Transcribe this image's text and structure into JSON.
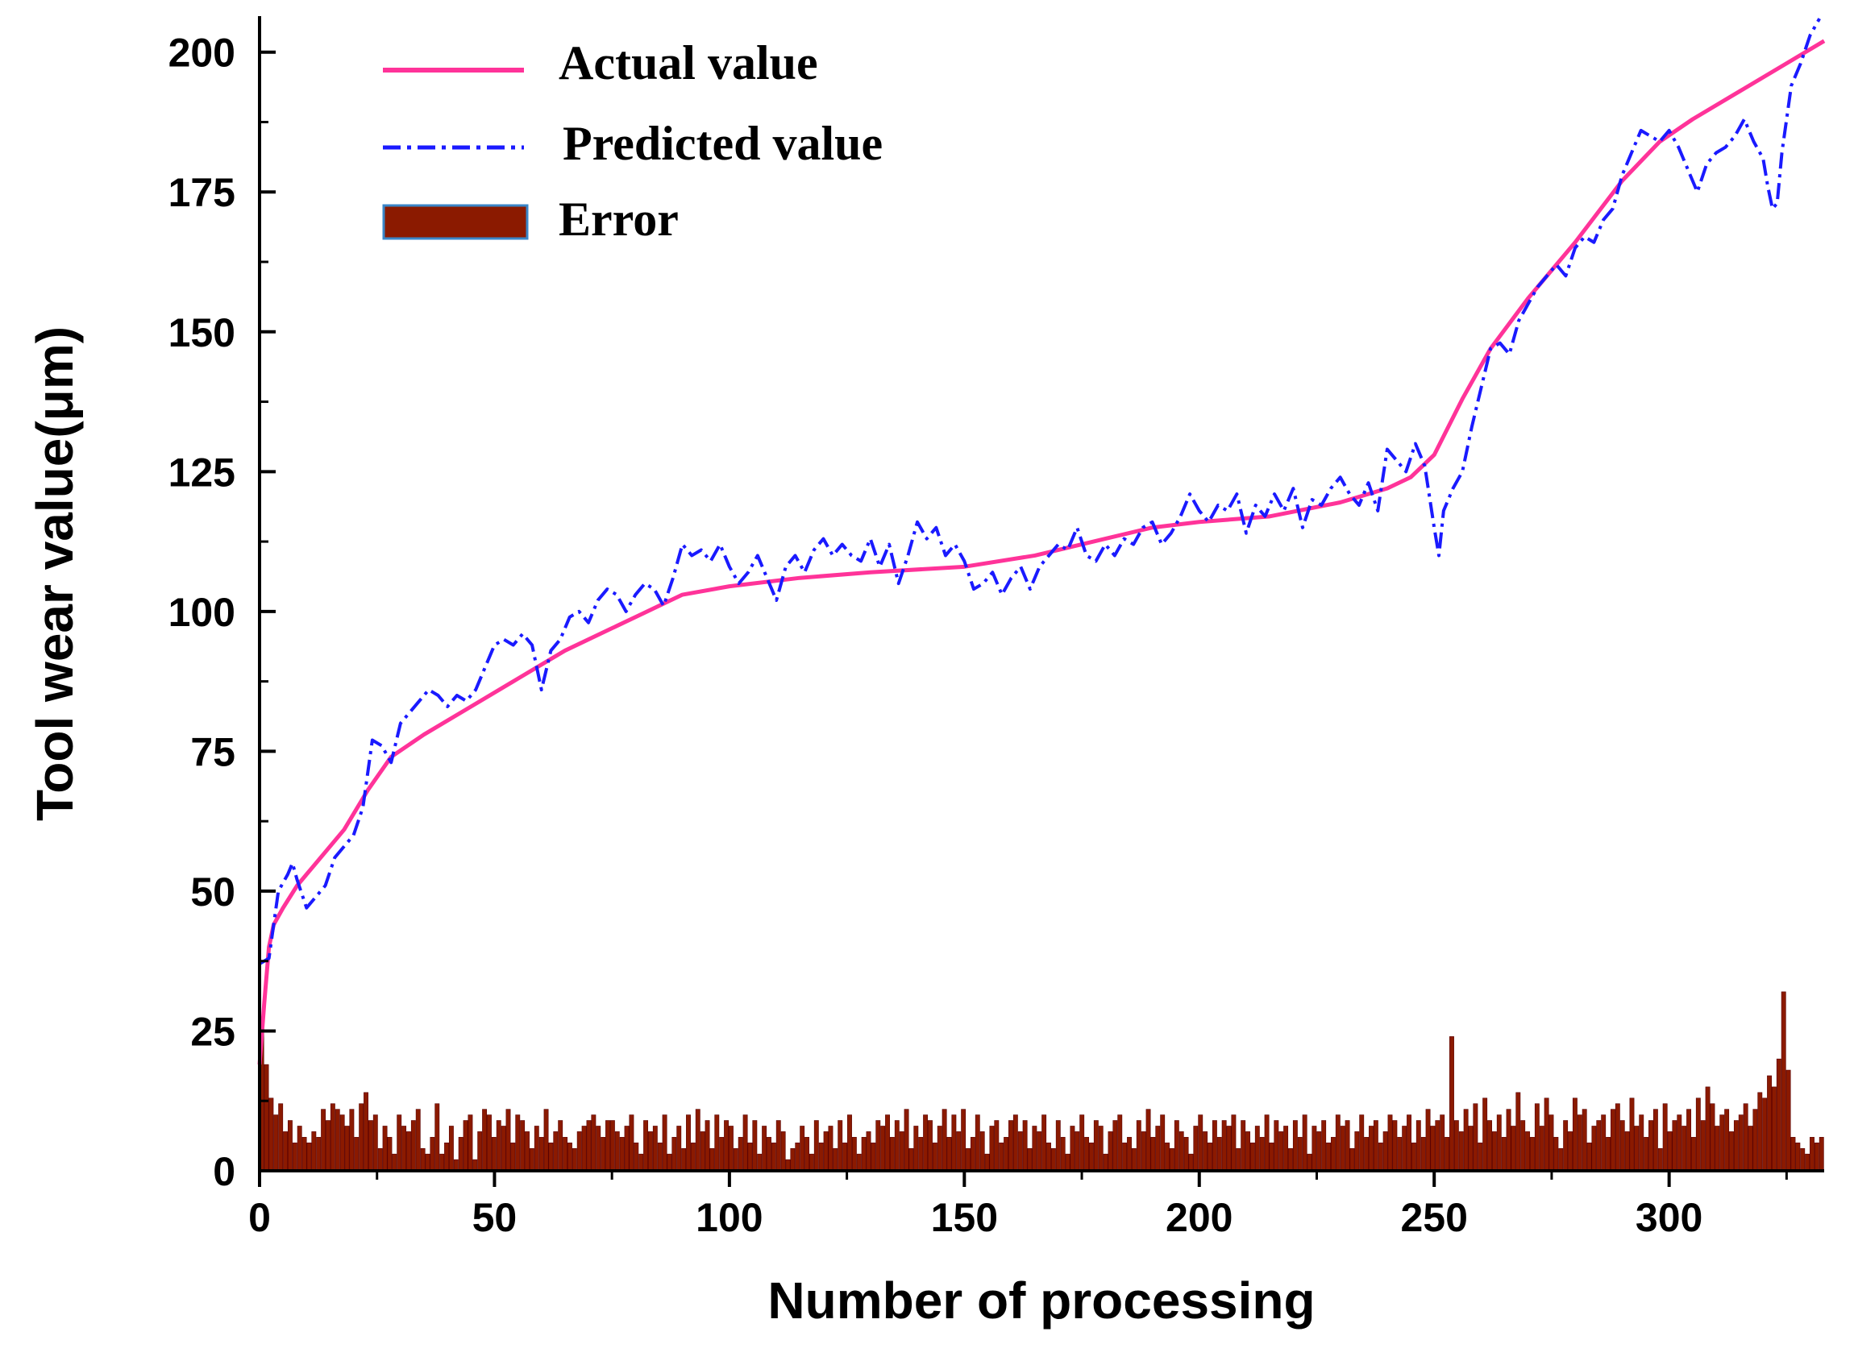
{
  "chart_data": {
    "type": "line",
    "title": "",
    "xlabel": "Number of processing",
    "ylabel": "Tool wear value(μm)",
    "xlim": [
      0,
      333
    ],
    "ylim": [
      0,
      205
    ],
    "xticks": [
      0,
      50,
      100,
      150,
      200,
      250,
      300
    ],
    "yticks": [
      0,
      25,
      50,
      75,
      100,
      125,
      150,
      175,
      200
    ],
    "legend_position": "top-left",
    "colors": {
      "actual": "#ff3399",
      "predicted": "#1a1aff",
      "error": "#8b1a00",
      "error_edge": "#5a0000"
    },
    "legend": [
      {
        "key": "actual",
        "label": "Actual value",
        "style": "solid-line"
      },
      {
        "key": "predicted",
        "label": "Predicted value",
        "style": "dash-dot-line"
      },
      {
        "key": "error",
        "label": "Error",
        "style": "bar"
      }
    ],
    "series": [
      {
        "name": "Actual value",
        "key": "actual",
        "x": [
          0,
          1,
          2,
          3,
          5,
          8,
          12,
          18,
          23,
          28,
          35,
          45,
          55,
          65,
          75,
          85,
          90,
          100,
          115,
          130,
          150,
          165,
          180,
          190,
          200,
          215,
          230,
          240,
          245,
          250,
          256,
          262,
          270,
          280,
          290,
          298,
          305,
          315,
          325,
          333
        ],
        "values": [
          19,
          30,
          40,
          44,
          47,
          51,
          55,
          61,
          68,
          74,
          78,
          83,
          88,
          93,
          97,
          101,
          103,
          104.5,
          106,
          107,
          108,
          110,
          113,
          115,
          116,
          117,
          119.5,
          122,
          124,
          128,
          138,
          147,
          156,
          166,
          177,
          184,
          188,
          193,
          198,
          202
        ]
      },
      {
        "name": "Predicted value",
        "key": "predicted",
        "x": [
          0,
          2,
          4,
          6,
          7,
          8,
          10,
          12,
          14,
          16,
          18,
          20,
          22,
          24,
          26,
          28,
          30,
          32,
          34,
          36,
          38,
          40,
          42,
          44,
          46,
          48,
          50,
          52,
          54,
          56,
          58,
          60,
          62,
          64,
          66,
          68,
          70,
          72,
          74,
          76,
          78,
          80,
          82,
          84,
          86,
          88,
          90,
          92,
          94,
          96,
          98,
          100,
          102,
          104,
          106,
          108,
          110,
          112,
          114,
          116,
          118,
          120,
          122,
          124,
          126,
          128,
          130,
          132,
          134,
          136,
          138,
          140,
          142,
          144,
          146,
          148,
          150,
          152,
          154,
          156,
          158,
          160,
          162,
          164,
          166,
          168,
          170,
          172,
          174,
          176,
          178,
          180,
          182,
          184,
          186,
          188,
          190,
          192,
          194,
          196,
          198,
          200,
          202,
          204,
          206,
          208,
          210,
          212,
          214,
          216,
          218,
          220,
          222,
          224,
          226,
          228,
          230,
          232,
          234,
          236,
          238,
          240,
          242,
          244,
          246,
          248,
          250,
          251,
          252,
          254,
          256,
          258,
          260,
          262,
          264,
          266,
          268,
          270,
          272,
          274,
          276,
          278,
          280,
          282,
          284,
          286,
          288,
          290,
          292,
          294,
          296,
          298,
          300,
          302,
          304,
          306,
          308,
          310,
          312,
          314,
          316,
          318,
          320,
          321,
          322,
          323,
          324,
          326,
          328,
          330,
          332
        ],
        "values": [
          37,
          38,
          50,
          53,
          55,
          52,
          47,
          49,
          51,
          56,
          58,
          60,
          65,
          77,
          76,
          73,
          80,
          82,
          84,
          86,
          85,
          83,
          85,
          84,
          86,
          90,
          94,
          95,
          94,
          96,
          94,
          86,
          93,
          95,
          99,
          100,
          98,
          102,
          104,
          103,
          100,
          103,
          105,
          104,
          101,
          106,
          112,
          110,
          111,
          109,
          112,
          108,
          105,
          107,
          110,
          106,
          102,
          108,
          110,
          107,
          111,
          113,
          110,
          112,
          110,
          109,
          113,
          108,
          112,
          105,
          110,
          116,
          113,
          115,
          110,
          112,
          109,
          104,
          105,
          107,
          103,
          106,
          108,
          104,
          108,
          110,
          112,
          111,
          115,
          110,
          109,
          112,
          110,
          113,
          112,
          115,
          116,
          112,
          114,
          117,
          121,
          118,
          116,
          119,
          118,
          121,
          114,
          119,
          117,
          121,
          118,
          122,
          115,
          120,
          119,
          122,
          124,
          121,
          119,
          123,
          118,
          129,
          127,
          125,
          130,
          126,
          115,
          110,
          118,
          122,
          125,
          133,
          140,
          147,
          148,
          146,
          152,
          155,
          158,
          160,
          162,
          160,
          165,
          167,
          166,
          170,
          172,
          178,
          182,
          186,
          185,
          184,
          186,
          183,
          179,
          175,
          180,
          182,
          183,
          185,
          188,
          184,
          181,
          176,
          172,
          173,
          182,
          194,
          198,
          203,
          206
        ]
      }
    ],
    "error_bars": {
      "name": "Error",
      "values": [
        26,
        19,
        13,
        10,
        12,
        7,
        9,
        5,
        8,
        6,
        5,
        7,
        6,
        11,
        9,
        12,
        11,
        10,
        8,
        11,
        6,
        12,
        14,
        9,
        10,
        4,
        8,
        6,
        3,
        10,
        8,
        7,
        9,
        11,
        4,
        3,
        6,
        12,
        3,
        5,
        8,
        2,
        6,
        9,
        10,
        2,
        7,
        11,
        10,
        6,
        9,
        8,
        11,
        5,
        10,
        9,
        7,
        4,
        8,
        6,
        11,
        5,
        7,
        9,
        6,
        5,
        4,
        7,
        8,
        9,
        10,
        8,
        6,
        9,
        9,
        7,
        6,
        8,
        10,
        5,
        3,
        9,
        7,
        8,
        5,
        10,
        3,
        6,
        8,
        4,
        10,
        5,
        11,
        7,
        9,
        4,
        10,
        6,
        9,
        8,
        4,
        6,
        10,
        5,
        9,
        3,
        8,
        6,
        5,
        9,
        7,
        2,
        4,
        5,
        8,
        6,
        3,
        9,
        5,
        7,
        8,
        4,
        9,
        5,
        10,
        6,
        3,
        6,
        7,
        5,
        9,
        8,
        10,
        6,
        9,
        7,
        11,
        4,
        8,
        6,
        10,
        9,
        5,
        8,
        11,
        6,
        10,
        7,
        11,
        4,
        6,
        10,
        7,
        3,
        8,
        9,
        5,
        6,
        9,
        10,
        7,
        9,
        4,
        8,
        7,
        10,
        5,
        4,
        9,
        6,
        3,
        8,
        7,
        10,
        6,
        5,
        9,
        8,
        3,
        7,
        9,
        10,
        5,
        6,
        4,
        9,
        7,
        11,
        6,
        8,
        10,
        5,
        4,
        9,
        7,
        6,
        3,
        8,
        10,
        7,
        5,
        9,
        6,
        9,
        8,
        10,
        4,
        9,
        7,
        5,
        8,
        6,
        10,
        5,
        9,
        7,
        8,
        4,
        9,
        6,
        10,
        3,
        8,
        7,
        9,
        5,
        6,
        10,
        8,
        9,
        4,
        7,
        10,
        6,
        8,
        9,
        5,
        7,
        10,
        9,
        6,
        8,
        10,
        5,
        9,
        6,
        11,
        8,
        9,
        10,
        6,
        24,
        9,
        7,
        11,
        8,
        12,
        5,
        13,
        9,
        7,
        10,
        6,
        11,
        8,
        14,
        9,
        7,
        6,
        12,
        8,
        13,
        10,
        6,
        4,
        9,
        7,
        13,
        10,
        11,
        5,
        8,
        9,
        10,
        6,
        11,
        12,
        9,
        7,
        13,
        8,
        10,
        6,
        9,
        11,
        4,
        12,
        7,
        9,
        10,
        8,
        11,
        6,
        13,
        9,
        15,
        12,
        8,
        10,
        11,
        7,
        9,
        10,
        12,
        8,
        11,
        14,
        13,
        17,
        15,
        20,
        32,
        18,
        6,
        5,
        4,
        3,
        6,
        5,
        6
      ]
    }
  }
}
